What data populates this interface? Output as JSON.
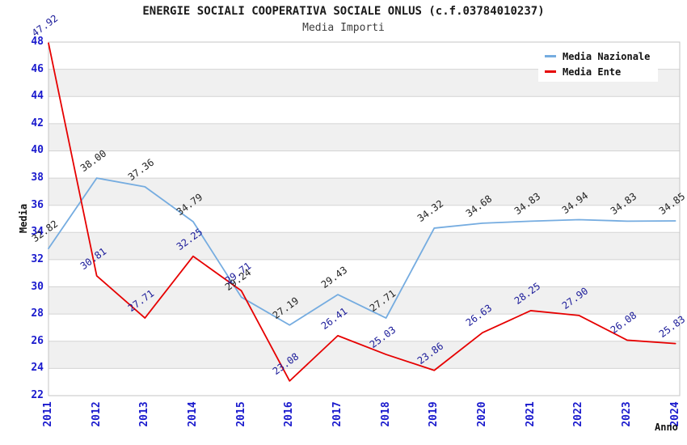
{
  "chart": {
    "title": "ENERGIE SOCIALI COOPERATIVA SOCIALE ONLUS (c.f.03784010237)",
    "subtitle": "Media Importi",
    "ylabel": "Media",
    "xlabel": "Anno"
  },
  "legend": {
    "items": [
      {
        "label": "Media Nazionale",
        "color": "#75ACE0"
      },
      {
        "label": "Media Ente",
        "color": "#E60000"
      }
    ]
  },
  "chart_data": {
    "type": "line",
    "title": "ENERGIE SOCIALI COOPERATIVA SOCIALE ONLUS (c.f.03784010237)",
    "subtitle": "Media Importi",
    "xlabel": "Anno",
    "ylabel": "Media",
    "categories": [
      "2011",
      "2012",
      "2013",
      "2014",
      "2015",
      "2016",
      "2017",
      "2018",
      "2019",
      "2020",
      "2021",
      "2022",
      "2023",
      "2024"
    ],
    "series": [
      {
        "name": "Media Nazionale",
        "color": "#75ACE0",
        "label_color": "#222222",
        "values": [
          32.82,
          38.0,
          37.36,
          34.79,
          29.24,
          27.19,
          29.43,
          27.71,
          34.32,
          34.68,
          34.83,
          34.94,
          34.83,
          34.85
        ]
      },
      {
        "name": "Media Ente",
        "color": "#E60000",
        "label_color": "#1A1A99",
        "values": [
          47.92,
          30.81,
          27.71,
          32.25,
          29.71,
          23.08,
          26.41,
          25.03,
          23.86,
          26.63,
          28.25,
          27.9,
          26.08,
          25.83
        ]
      }
    ],
    "ylim": [
      22,
      48
    ],
    "ytick_step": 2,
    "grid": "horizontal",
    "bands": "alternating-light-gray",
    "legend_position": "top-right",
    "colors": {
      "tick_text": "#1A1ACD",
      "band_gray": "#F0F0F0",
      "gridline": "#D4D4D4",
      "plot_border": "#C4C4C4"
    }
  }
}
